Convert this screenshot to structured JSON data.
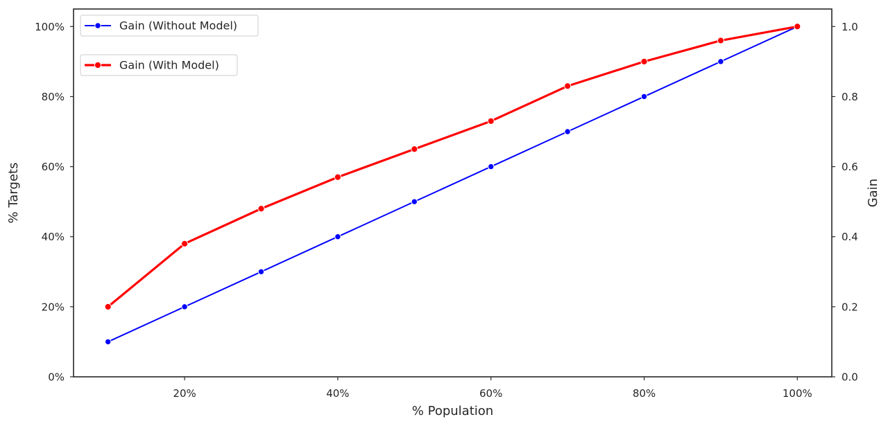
{
  "chart_data": {
    "type": "line",
    "xlabel": "% Population",
    "ylabel": "% Targets",
    "ylabel_right": "Gain",
    "x": [
      0.1,
      0.2,
      0.3,
      0.4,
      0.5,
      0.6,
      0.7,
      0.8,
      0.9,
      1.0
    ],
    "xlim": [
      0.055,
      1.045
    ],
    "ylim": [
      0,
      1.05
    ],
    "ylim_right": [
      0,
      1.05
    ],
    "x_ticks": [
      0.2,
      0.4,
      0.6,
      0.8,
      1.0
    ],
    "x_tick_labels": [
      "20%",
      "40%",
      "60%",
      "80%",
      "100%"
    ],
    "y_ticks": [
      0,
      0.2,
      0.4,
      0.6,
      0.8,
      1.0
    ],
    "y_tick_labels": [
      "0%",
      "20%",
      "40%",
      "60%",
      "80%",
      "100%"
    ],
    "y_right_ticks": [
      0,
      0.2,
      0.4,
      0.6,
      0.8,
      1.0
    ],
    "y_right_tick_labels": [
      "0.0",
      "0.2",
      "0.4",
      "0.6",
      "0.8",
      "1.0"
    ],
    "grid": false,
    "legend_placement": "top-left",
    "series": [
      {
        "name": "Gain (Without Model)",
        "color": "#0000ff",
        "values": [
          0.1,
          0.2,
          0.3,
          0.4,
          0.5,
          0.6,
          0.7,
          0.8,
          0.9,
          1.0
        ]
      },
      {
        "name": "Gain (With Model)",
        "color": "#ff0000",
        "values": [
          0.2,
          0.38,
          0.48,
          0.57,
          0.65,
          0.73,
          0.83,
          0.9,
          0.96,
          1.0
        ]
      }
    ]
  }
}
